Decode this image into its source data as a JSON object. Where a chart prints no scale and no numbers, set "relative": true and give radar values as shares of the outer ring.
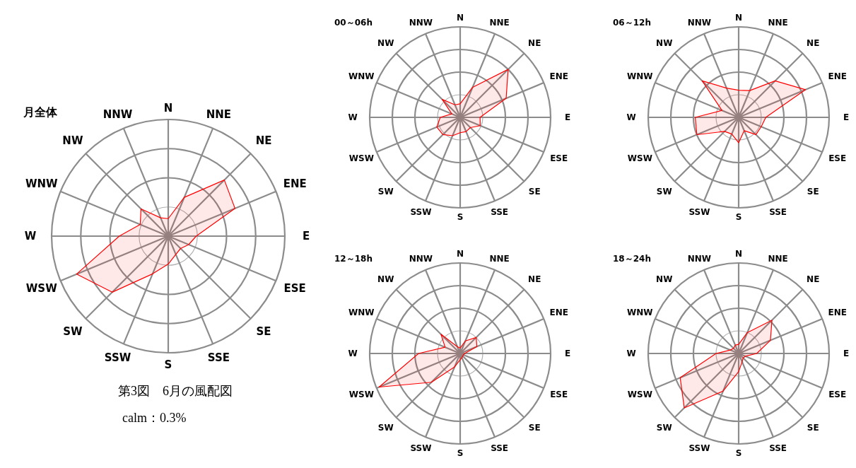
{
  "chart_data": [
    {
      "type": "radar",
      "title": "月全体",
      "relative": true,
      "grid": true,
      "categories": [
        "N",
        "NNE",
        "NE",
        "ENE",
        "E",
        "ESE",
        "SE",
        "SSE",
        "S",
        "SSW",
        "SW",
        "WSW",
        "W",
        "WNW",
        "NW",
        "NNW"
      ],
      "series": [
        {
          "color": "#ff0000",
          "values": [
            0.15,
            0.36,
            0.68,
            0.62,
            0.24,
            0.19,
            0.15,
            0.17,
            0.24,
            0.35,
            0.68,
            0.85,
            0.42,
            0.26,
            0.33,
            0.17
          ]
        }
      ],
      "annotations": [
        "第3図　6月の風配図",
        "calm：0.3%"
      ]
    },
    {
      "type": "radar",
      "title": "00～06h",
      "relative": true,
      "grid": true,
      "categories": [
        "N",
        "NNE",
        "NE",
        "ENE",
        "E",
        "ESE",
        "SE",
        "SSE",
        "S",
        "SSW",
        "SW",
        "WSW",
        "W",
        "WNW",
        "NW",
        "NNW"
      ],
      "series": [
        {
          "color": "#ff0000",
          "values": [
            0.15,
            0.36,
            0.75,
            0.55,
            0.22,
            0.24,
            0.16,
            0.17,
            0.17,
            0.22,
            0.27,
            0.28,
            0.22,
            0.1,
            0.28,
            0.15
          ]
        }
      ]
    },
    {
      "type": "radar",
      "title": "06～12h",
      "relative": true,
      "grid": true,
      "categories": [
        "N",
        "NNE",
        "NE",
        "ENE",
        "E",
        "ESE",
        "SE",
        "SSE",
        "S",
        "SSW",
        "SW",
        "WSW",
        "W",
        "WNW",
        "NW",
        "NNW"
      ],
      "series": [
        {
          "color": "#ff0000",
          "values": [
            0.3,
            0.32,
            0.57,
            0.8,
            0.3,
            0.27,
            0.27,
            0.16,
            0.28,
            0.2,
            0.22,
            0.5,
            0.48,
            0.2,
            0.57,
            0.35
          ]
        }
      ]
    },
    {
      "type": "radar",
      "title": "12～18h",
      "relative": true,
      "grid": true,
      "categories": [
        "N",
        "NNE",
        "NE",
        "ENE",
        "E",
        "ESE",
        "SE",
        "SSE",
        "S",
        "SSW",
        "SW",
        "WSW",
        "W",
        "WNW",
        "NW",
        "NNW"
      ],
      "series": [
        {
          "color": "#ff0000",
          "values": [
            0.06,
            0.15,
            0.25,
            0.2,
            0.05,
            0.04,
            0.04,
            0.05,
            0.07,
            0.16,
            0.45,
            0.97,
            0.46,
            0.18,
            0.3,
            0.08
          ]
        }
      ]
    },
    {
      "type": "radar",
      "title": "18～24h",
      "relative": true,
      "grid": true,
      "categories": [
        "N",
        "NNE",
        "NE",
        "ENE",
        "E",
        "ESE",
        "SE",
        "SSE",
        "S",
        "SSW",
        "SW",
        "WSW",
        "W",
        "WNW",
        "NW",
        "NNW"
      ],
      "series": [
        {
          "color": "#ff0000",
          "values": [
            0.1,
            0.25,
            0.52,
            0.38,
            0.2,
            0.08,
            0.07,
            0.1,
            0.2,
            0.45,
            0.85,
            0.7,
            0.25,
            0.1,
            0.08,
            0.1
          ]
        }
      ]
    }
  ]
}
